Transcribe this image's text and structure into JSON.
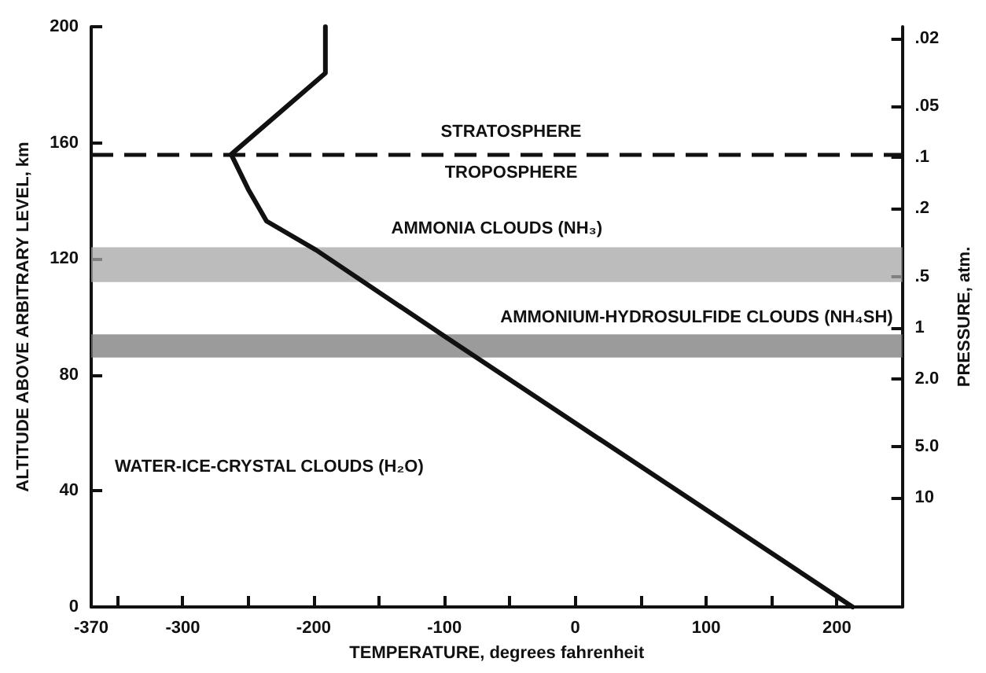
{
  "chart_data": {
    "type": "line",
    "xlabel": "TEMPERATURE, degrees fahrenheit",
    "ylabel": "ALTITUDE ABOVE ARBITRARY LEVEL, km",
    "y2label": "PRESSURE, atm.",
    "x": [
      212,
      -99,
      -198,
      -236,
      -250,
      -263,
      -191,
      -191
    ],
    "series": [
      {
        "color": "#111111",
        "values": [
          0,
          93,
          123,
          133,
          144,
          156,
          184,
          200
        ]
      }
    ],
    "xlim": [
      -370,
      250
    ],
    "xticks": [
      -370,
      {
        "value": -350,
        "label": null
      },
      -300,
      {
        "value": -250,
        "label": null
      },
      -200,
      {
        "value": -150,
        "label": null
      },
      -100,
      {
        "value": -50,
        "label": null
      },
      0,
      {
        "value": 50,
        "label": null
      },
      100,
      {
        "value": 150,
        "label": null
      },
      200
    ],
    "ylim": [
      0,
      200
    ],
    "yticks": [
      0,
      40,
      80,
      120,
      160,
      200
    ],
    "y2lim": [
      44,
      0.017
    ],
    "log": "y2",
    "y2ticks": [
      {
        "value": 0.02,
        "label": ".02"
      },
      {
        "value": 0.05,
        "label": ".05"
      },
      {
        "value": 0.1,
        "label": ".1"
      },
      {
        "value": 0.2,
        "label": ".2"
      },
      {
        "value": 0.5,
        "label": ".5"
      },
      1,
      {
        "value": 2,
        "label": "2.0"
      },
      {
        "value": 5,
        "label": "5.0"
      },
      10
    ],
    "ref_lines": [
      {
        "axis": "y",
        "value": 156,
        "line_style": "dashed",
        "color": "#111111"
      }
    ],
    "bands": [
      {
        "axis": "y",
        "from": 112,
        "to": 124,
        "label": "AMMONIA CLOUDS (NH₃)",
        "color": "#a6a6a6"
      },
      {
        "axis": "y",
        "from": 86,
        "to": 94,
        "label": "AMMONIUM-HYDROSULFIDE CLOUDS (NH₄SH)",
        "color": "#7a7a7a"
      }
    ],
    "annotations": [
      "STRATOSPHERE",
      "TROPOSPHERE",
      "WATER-ICE-CRYSTAL CLOUDS (H₂O)"
    ],
    "grid": false,
    "marker": "none",
    "line_style": "solid"
  }
}
